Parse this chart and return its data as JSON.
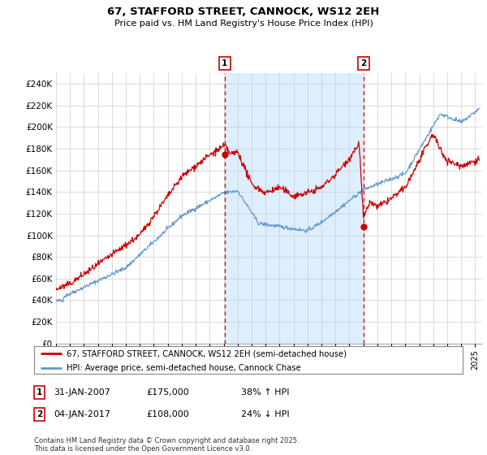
{
  "title": "67, STAFFORD STREET, CANNOCK, WS12 2EH",
  "subtitle": "Price paid vs. HM Land Registry's House Price Index (HPI)",
  "legend_line1": "67, STAFFORD STREET, CANNOCK, WS12 2EH (semi-detached house)",
  "legend_line2": "HPI: Average price, semi-detached house, Cannock Chase",
  "annotation1_date": "31-JAN-2007",
  "annotation1_price": "£175,000",
  "annotation1_hpi": "38% ↑ HPI",
  "annotation1_year": 2007.08,
  "annotation1_value": 175000,
  "annotation2_date": "04-JAN-2017",
  "annotation2_price": "£108,000",
  "annotation2_hpi": "24% ↓ HPI",
  "annotation2_year": 2017.01,
  "annotation2_value": 108000,
  "ymin": 0,
  "ymax": 250000,
  "ytick_step": 20000,
  "xmin": 1995,
  "xmax": 2025.5,
  "footnote": "Contains HM Land Registry data © Crown copyright and database right 2025.\nThis data is licensed under the Open Government Licence v3.0.",
  "line_color_red": "#cc0000",
  "line_color_blue": "#6699cc",
  "shade_color": "#ddeeff",
  "background_color": "#ffffff",
  "grid_color": "#cccccc"
}
